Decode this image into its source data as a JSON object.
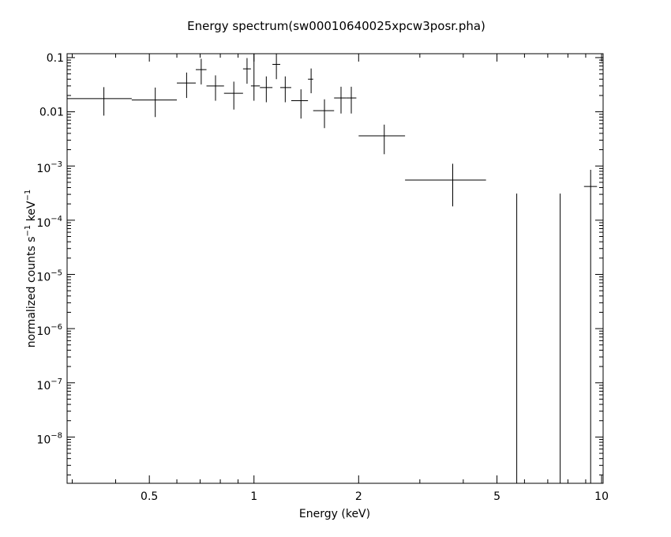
{
  "chart_data": {
    "type": "scatter",
    "title": "Energy spectrum(sw00010640025xpcw3posr.pha)",
    "xlabel": "Energy (keV)",
    "ylabel": {
      "base": "normalized counts s",
      "sup1": "−1",
      "mid": " keV",
      "sup2": "−1"
    },
    "xscale": "log",
    "yscale": "log",
    "xlim": [
      0.29,
      10.1
    ],
    "ylim": [
      1.4e-09,
      0.118
    ],
    "x_ticks": [
      {
        "value": 0.5,
        "label": "0.5"
      },
      {
        "value": 1,
        "label": "1"
      },
      {
        "value": 2,
        "label": "2"
      },
      {
        "value": 5,
        "label": "5"
      },
      {
        "value": 10,
        "label": "10"
      }
    ],
    "y_ticks": [
      {
        "value": 0.1,
        "label": "0.1",
        "mant": "",
        "exp": ""
      },
      {
        "value": 0.01,
        "label": "0.01",
        "mant": "",
        "exp": ""
      },
      {
        "value": 0.001,
        "label": "",
        "mant": "10",
        "exp": "−3"
      },
      {
        "value": 0.0001,
        "label": "",
        "mant": "10",
        "exp": "−4"
      },
      {
        "value": 1e-05,
        "label": "",
        "mant": "10",
        "exp": "−5"
      },
      {
        "value": 1e-06,
        "label": "",
        "mant": "10",
        "exp": "−6"
      },
      {
        "value": 1e-07,
        "label": "",
        "mant": "10",
        "exp": "−7"
      },
      {
        "value": 1e-08,
        "label": "",
        "mant": "10",
        "exp": "−8"
      }
    ],
    "series": [
      {
        "points": [
          {
            "x": 0.37,
            "xlo": 0.29,
            "xhi": 0.445,
            "y": 0.0175,
            "ylo": 0.0085,
            "yhi": 0.0285
          },
          {
            "x": 0.52,
            "xlo": 0.445,
            "xhi": 0.6,
            "y": 0.0165,
            "ylo": 0.008,
            "yhi": 0.028
          },
          {
            "x": 0.64,
            "xlo": 0.6,
            "xhi": 0.68,
            "y": 0.034,
            "ylo": 0.018,
            "yhi": 0.053
          },
          {
            "x": 0.705,
            "xlo": 0.68,
            "xhi": 0.73,
            "y": 0.06,
            "ylo": 0.032,
            "yhi": 0.095
          },
          {
            "x": 0.775,
            "xlo": 0.73,
            "xhi": 0.82,
            "y": 0.03,
            "ylo": 0.016,
            "yhi": 0.047
          },
          {
            "x": 0.875,
            "xlo": 0.82,
            "xhi": 0.93,
            "y": 0.022,
            "ylo": 0.011,
            "yhi": 0.036
          },
          {
            "x": 0.955,
            "xlo": 0.93,
            "xhi": 0.98,
            "y": 0.062,
            "ylo": 0.033,
            "yhi": 0.098
          },
          {
            "x": 1.0,
            "xlo": 0.98,
            "xhi": 1.04,
            "y": 0.03,
            "ylo": 0.016,
            "yhi": 0.118
          },
          {
            "x": 1.085,
            "xlo": 1.04,
            "xhi": 1.13,
            "y": 0.028,
            "ylo": 0.015,
            "yhi": 0.045
          },
          {
            "x": 1.16,
            "xlo": 1.13,
            "xhi": 1.19,
            "y": 0.075,
            "ylo": 0.04,
            "yhi": 0.118
          },
          {
            "x": 1.23,
            "xlo": 1.19,
            "xhi": 1.28,
            "y": 0.028,
            "ylo": 0.015,
            "yhi": 0.045
          },
          {
            "x": 1.365,
            "xlo": 1.28,
            "xhi": 1.43,
            "y": 0.016,
            "ylo": 0.0075,
            "yhi": 0.026
          },
          {
            "x": 1.46,
            "xlo": 1.43,
            "xhi": 1.48,
            "y": 0.04,
            "ylo": 0.022,
            "yhi": 0.063
          },
          {
            "x": 1.595,
            "xlo": 1.48,
            "xhi": 1.7,
            "y": 0.0105,
            "ylo": 0.005,
            "yhi": 0.017
          },
          {
            "x": 1.78,
            "xlo": 1.7,
            "xhi": 1.84,
            "y": 0.018,
            "ylo": 0.0093,
            "yhi": 0.029
          },
          {
            "x": 1.905,
            "xlo": 1.84,
            "xhi": 1.97,
            "y": 0.018,
            "ylo": 0.0093,
            "yhi": 0.029
          },
          {
            "x": 2.37,
            "xlo": 2.0,
            "xhi": 2.72,
            "y": 0.0036,
            "ylo": 0.00165,
            "yhi": 0.0058
          },
          {
            "x": 3.73,
            "xlo": 2.72,
            "xhi": 4.65,
            "y": 0.00055,
            "ylo": 0.00018,
            "yhi": 0.0011
          },
          {
            "x": 5.7,
            "xlo": 5.7,
            "xhi": 5.7,
            "y": 1.6e-06,
            "ylo": 1.4e-09,
            "yhi": 0.00031
          },
          {
            "x": 7.6,
            "xlo": 7.6,
            "xhi": 7.6,
            "y": 1.6e-06,
            "ylo": 1.4e-09,
            "yhi": 0.00031
          },
          {
            "x": 9.3,
            "xlo": 8.9,
            "xhi": 9.7,
            "y": 0.00042,
            "ylo": 1.4e-09,
            "yhi": 0.00085
          }
        ]
      }
    ],
    "colors": {
      "background": "#ffffff",
      "ink": "#000000"
    }
  }
}
